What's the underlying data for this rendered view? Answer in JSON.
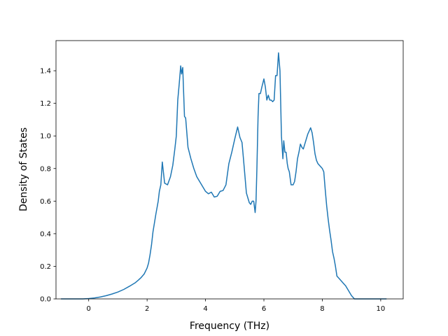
{
  "chart_data": {
    "type": "line",
    "title": "",
    "xlabel": "Frequency (THz)",
    "ylabel": "Density of States",
    "xlim": [
      -1.12,
      10.77
    ],
    "ylim": [
      0.0,
      1.585
    ],
    "xticks": [
      0,
      2,
      4,
      6,
      8,
      10
    ],
    "xtick_labels": [
      "0",
      "2",
      "4",
      "6",
      "8",
      "10"
    ],
    "yticks": [
      0.0,
      0.2,
      0.4,
      0.6,
      0.8,
      1.0,
      1.2,
      1.4
    ],
    "ytick_labels": [
      "0.0",
      "0.2",
      "0.4",
      "0.6",
      "0.8",
      "1.0",
      "1.2",
      "1.4"
    ],
    "grid": false,
    "line_color": "#1f77b4",
    "series": [
      {
        "x": [
          -0.95,
          -0.6,
          -0.2,
          0.0,
          0.2,
          0.4,
          0.6,
          0.8,
          1.0,
          1.2,
          1.4,
          1.6,
          1.7,
          1.8,
          1.9,
          2.0,
          2.05,
          2.1,
          2.15,
          2.2,
          2.3,
          2.38,
          2.42,
          2.47,
          2.52,
          2.6,
          2.7,
          2.8,
          2.88,
          2.95,
          3.0,
          3.05,
          3.1,
          3.15,
          3.18,
          3.22,
          3.28,
          3.32,
          3.4,
          3.5,
          3.6,
          3.7,
          3.8,
          3.9,
          4.0,
          4.1,
          4.2,
          4.3,
          4.4,
          4.5,
          4.6,
          4.7,
          4.8,
          4.9,
          5.0,
          5.1,
          5.18,
          5.25,
          5.3,
          5.4,
          5.5,
          5.55,
          5.6,
          5.65,
          5.7,
          5.73,
          5.76,
          5.8,
          5.83,
          5.88,
          5.93,
          6.0,
          6.05,
          6.1,
          6.15,
          6.2,
          6.25,
          6.3,
          6.35,
          6.4,
          6.45,
          6.5,
          6.55,
          6.6,
          6.65,
          6.68,
          6.72,
          6.76,
          6.8,
          6.83,
          6.87,
          6.9,
          6.93,
          6.96,
          7.0,
          7.05,
          7.1,
          7.15,
          7.2,
          7.25,
          7.3,
          7.35,
          7.4,
          7.45,
          7.5,
          7.55,
          7.6,
          7.65,
          7.7,
          7.75,
          7.8,
          7.85,
          7.9,
          7.95,
          8.0,
          8.05,
          8.1,
          8.15,
          8.2,
          8.25,
          8.3,
          8.35,
          8.4,
          8.45,
          8.5,
          8.6,
          8.7,
          8.8,
          8.9,
          9.0,
          9.1,
          9.2,
          9.25,
          9.3,
          9.5,
          10.0,
          10.2
        ],
        "y": [
          0.0,
          0.0,
          0.0,
          0.002,
          0.006,
          0.012,
          0.02,
          0.03,
          0.042,
          0.058,
          0.078,
          0.1,
          0.115,
          0.132,
          0.153,
          0.19,
          0.22,
          0.27,
          0.33,
          0.41,
          0.52,
          0.6,
          0.66,
          0.7,
          0.84,
          0.71,
          0.7,
          0.75,
          0.82,
          0.92,
          1.0,
          1.22,
          1.32,
          1.43,
          1.38,
          1.42,
          1.12,
          1.11,
          0.93,
          0.86,
          0.8,
          0.75,
          0.72,
          0.69,
          0.66,
          0.645,
          0.655,
          0.625,
          0.63,
          0.66,
          0.665,
          0.7,
          0.83,
          0.9,
          0.98,
          1.055,
          0.99,
          0.96,
          0.86,
          0.65,
          0.59,
          0.58,
          0.6,
          0.6,
          0.53,
          0.6,
          0.8,
          1.12,
          1.26,
          1.26,
          1.3,
          1.35,
          1.3,
          1.22,
          1.25,
          1.22,
          1.22,
          1.21,
          1.22,
          1.37,
          1.37,
          1.51,
          1.4,
          1.0,
          0.86,
          0.97,
          0.9,
          0.9,
          0.83,
          0.8,
          0.78,
          0.74,
          0.7,
          0.7,
          0.7,
          0.72,
          0.78,
          0.86,
          0.9,
          0.95,
          0.93,
          0.92,
          0.95,
          0.98,
          1.01,
          1.03,
          1.05,
          1.02,
          0.96,
          0.89,
          0.85,
          0.83,
          0.82,
          0.81,
          0.8,
          0.78,
          0.67,
          0.57,
          0.49,
          0.42,
          0.36,
          0.29,
          0.25,
          0.2,
          0.14,
          0.12,
          0.1,
          0.08,
          0.05,
          0.02,
          0.0,
          0.0,
          0.0,
          0.0,
          0.0,
          0.0,
          0.0
        ]
      }
    ]
  }
}
